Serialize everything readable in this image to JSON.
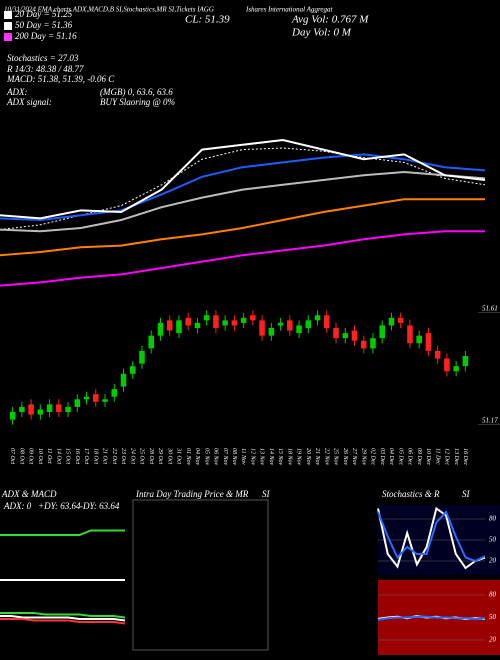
{
  "header": {
    "title": "10/31/2024 EMA charts ADX,MACD,B SI,Stochastics,MR SI,Tickets IAGG",
    "close": "CL: 51.39",
    "company": "Ishares International Aggregat",
    "avg_vol": "Avg Vol: 0.767 M",
    "day_vol": "Day Vol: 0 M"
  },
  "legend": [
    {
      "label": "20 Day = 51.25",
      "color": "#ffffff"
    },
    {
      "label": "50 Day = 51.36",
      "color": "#ffffff"
    },
    {
      "label": "200 Day = 51.16",
      "color": "#ff33ff"
    }
  ],
  "stats": [
    "Stochastics = 27.03",
    "R 14/3: 48.38 / 48.77",
    "MACD: 51.38, 51.39, -0.06 C"
  ],
  "signals": [
    "ADX:",
    "(MGB) 0, 63.6, 63.6",
    "ADX signal:",
    "BUY Slaoring @ 0%"
  ],
  "panels": {
    "adx_title": "ADX & MACD",
    "adx": "ADX: 0",
    "plus_dy": "+DY: 63.64",
    "minus_dy": "-DY: 63.64",
    "intraday": "Intra Day Trading Price & MR",
    "intraday_si": "SI",
    "stoch_title": "Stochastics & R",
    "stoch_si": "SI"
  },
  "chart_data": [
    {
      "type": "line",
      "ylim": [
        0,
        100
      ],
      "series": [
        {
          "color": "#000000",
          "dash": true,
          "values": [
            44,
            47,
            53,
            59,
            72,
            88,
            94,
            95,
            93,
            89,
            86,
            76,
            72
          ]
        },
        {
          "color": "#ff00ff",
          "values": [
            9,
            11,
            14,
            16,
            20,
            24,
            28,
            31,
            34,
            38,
            41,
            43,
            43
          ]
        },
        {
          "color": "#ff8000",
          "values": [
            28,
            30,
            33,
            34,
            38,
            41,
            45,
            50,
            55,
            59,
            63,
            63,
            63
          ]
        },
        {
          "color": "#bbbbbb",
          "values": [
            44,
            43,
            45,
            50,
            58,
            64,
            69,
            72,
            75,
            78,
            80,
            78,
            76
          ]
        },
        {
          "color": "#1e5cff",
          "values": [
            51,
            50,
            53,
            56,
            66,
            77,
            83,
            86,
            89,
            91,
            88,
            83,
            81
          ]
        },
        {
          "color": "#ffffff",
          "values": [
            53,
            51,
            56,
            55,
            69,
            94,
            97,
            100,
            94,
            88,
            91,
            78,
            75
          ]
        }
      ]
    },
    {
      "type": "candlestick",
      "ylim": [
        51.11,
        51.66
      ],
      "yticks": [
        51.61,
        51.17
      ],
      "up_color": "#00cc00",
      "down_color": "#ff2020",
      "categories": [
        "07 Oct",
        "08 Oct",
        "09 Oct",
        "10 Oct",
        "11 Oct",
        "14 Oct",
        "15 Oct",
        "16 Oct",
        "17 Oct",
        "18 Oct",
        "21 Oct",
        "22 Oct",
        "23 Oct",
        "24 Oct",
        "25 Oct",
        "28 Oct",
        "29 Oct",
        "30 Oct",
        "31 Oct",
        "01 Nov",
        "04 Nov",
        "05 Nov",
        "06 Nov",
        "07 Nov",
        "08 Nov",
        "11 Nov",
        "12 Nov",
        "13 Nov",
        "14 Nov",
        "15 Nov",
        "18 Nov",
        "19 Nov",
        "20 Nov",
        "21 Nov",
        "22 Nov",
        "25 Nov",
        "26 Nov",
        "27 Nov",
        "29 Nov",
        "02 Dec",
        "03 Dec",
        "04 Dec",
        "05 Dec",
        "06 Dec",
        "09 Dec",
        "10 Dec",
        "11 Dec",
        "12 Dec",
        "13 Dec",
        "16 Dec"
      ],
      "open": [
        51.19,
        51.22,
        51.25,
        51.21,
        51.22,
        51.25,
        51.22,
        51.24,
        51.27,
        51.29,
        51.26,
        51.28,
        51.32,
        51.37,
        51.41,
        51.47,
        51.52,
        51.58,
        51.53,
        51.59,
        51.55,
        51.58,
        51.6,
        51.56,
        51.58,
        51.57,
        51.6,
        51.58,
        51.52,
        51.56,
        51.58,
        51.53,
        51.55,
        51.58,
        51.6,
        51.55,
        51.51,
        51.54,
        51.5,
        51.47,
        51.51,
        51.56,
        51.59,
        51.56,
        51.49,
        51.53,
        51.46,
        51.43,
        51.38,
        51.4
      ],
      "high": [
        51.24,
        51.26,
        51.27,
        51.25,
        51.27,
        51.27,
        51.26,
        51.29,
        51.3,
        51.31,
        51.29,
        51.33,
        51.39,
        51.42,
        51.48,
        51.54,
        51.59,
        51.6,
        51.6,
        51.61,
        51.59,
        51.62,
        51.62,
        51.6,
        51.6,
        51.61,
        51.62,
        51.6,
        51.57,
        51.59,
        51.6,
        51.58,
        51.6,
        51.62,
        51.62,
        51.57,
        51.55,
        51.56,
        51.52,
        51.53,
        51.58,
        51.61,
        51.61,
        51.58,
        51.54,
        51.55,
        51.48,
        51.45,
        51.42,
        51.46
      ],
      "low": [
        51.17,
        51.2,
        51.19,
        51.19,
        51.2,
        51.2,
        51.2,
        51.22,
        51.25,
        51.24,
        51.24,
        51.26,
        51.3,
        51.35,
        51.39,
        51.45,
        51.5,
        51.52,
        51.51,
        51.54,
        51.53,
        51.56,
        51.53,
        51.54,
        51.54,
        51.55,
        51.56,
        51.5,
        51.5,
        51.54,
        51.52,
        51.51,
        51.53,
        51.56,
        51.53,
        51.49,
        51.49,
        51.48,
        51.45,
        51.45,
        51.49,
        51.54,
        51.55,
        51.47,
        51.47,
        51.44,
        51.41,
        51.36,
        51.36,
        51.38
      ],
      "close": [
        51.22,
        51.24,
        51.21,
        51.23,
        51.25,
        51.22,
        51.24,
        51.27,
        51.28,
        51.26,
        51.27,
        51.31,
        51.37,
        51.4,
        51.46,
        51.52,
        51.57,
        51.54,
        51.58,
        51.56,
        51.57,
        51.6,
        51.55,
        51.58,
        51.56,
        51.59,
        51.58,
        51.52,
        51.55,
        51.57,
        51.54,
        51.56,
        51.58,
        51.6,
        51.55,
        51.51,
        51.53,
        51.5,
        51.47,
        51.51,
        51.56,
        51.59,
        51.57,
        51.49,
        51.52,
        51.46,
        51.43,
        51.38,
        51.4,
        51.44
      ]
    },
    {
      "type": "line",
      "ylim": [
        0,
        100
      ],
      "series": [
        {
          "color": "#33dd33",
          "values": [
            80,
            80,
            80,
            80,
            80,
            80,
            80,
            80,
            83,
            83,
            83,
            83
          ]
        },
        {
          "color": "#ffffff",
          "values": [
            50,
            50,
            50,
            50,
            50,
            50,
            50,
            50,
            50,
            50,
            50,
            50
          ]
        },
        {
          "color": "#33dd33",
          "values": [
            28,
            28,
            28,
            28,
            27,
            27,
            27,
            27,
            26,
            26,
            26,
            25
          ]
        },
        {
          "color": "#ffffff",
          "values": [
            26,
            26,
            25,
            25,
            25,
            25,
            25,
            24,
            24,
            24,
            24,
            23
          ]
        },
        {
          "color": "#ff3333",
          "values": [
            24,
            24,
            24,
            23,
            23,
            23,
            23,
            22,
            22,
            22,
            22,
            21
          ]
        }
      ]
    },
    {
      "type": "line",
      "ylim": [
        0,
        100
      ],
      "yticks": [
        80,
        50,
        20
      ],
      "background": "#000022",
      "series": [
        {
          "color": "#ffffff",
          "values": [
            95,
            30,
            12,
            60,
            15,
            40,
            95,
            85,
            30,
            10,
            20,
            25
          ]
        },
        {
          "color": "#2a6cff",
          "values": [
            90,
            55,
            25,
            40,
            30,
            30,
            75,
            90,
            55,
            25,
            20,
            27
          ]
        }
      ]
    },
    {
      "type": "line",
      "ylim": [
        0,
        100
      ],
      "yticks": [
        80,
        50,
        20
      ],
      "background": "#9a0000",
      "series": [
        {
          "color": "#ffffff",
          "values": [
            48,
            50,
            51,
            49,
            52,
            50,
            51,
            49,
            50,
            48,
            49,
            48
          ]
        },
        {
          "color": "#2a6cff",
          "values": [
            47,
            49,
            50,
            50,
            51,
            51,
            50,
            50,
            49,
            49,
            48,
            49
          ]
        }
      ]
    }
  ]
}
